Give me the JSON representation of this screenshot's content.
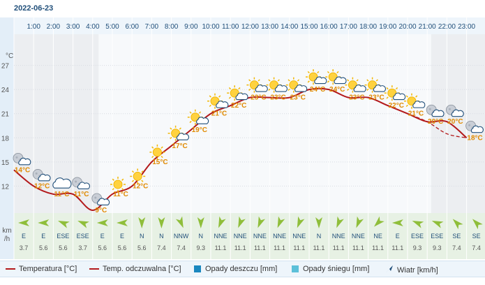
{
  "date": "2022-06-23",
  "axis": {
    "temp_unit": "°C",
    "wind_unit_line1": "km",
    "wind_unit_line2": "/h"
  },
  "colors": {
    "temperature": "#b3191b",
    "rain": "#1a87bf",
    "snow": "#5cc0d9",
    "wind_arrow": "#8fbe3a",
    "night_bg": "#eceef1",
    "day_bg": "#f7f9fb",
    "axis_bg": "#e3eef8",
    "temp_label": "#e08a00"
  },
  "chart_data": {
    "type": "line",
    "hours": [
      "1:00",
      "2:00",
      "3:00",
      "4:00",
      "5:00",
      "6:00",
      "7:00",
      "8:00",
      "9:00",
      "10:00",
      "11:00",
      "12:00",
      "13:00",
      "14:00",
      "15:00",
      "16:00",
      "17:00",
      "18:00",
      "19:00",
      "20:00",
      "21:00",
      "22:00",
      "23:00"
    ],
    "y_ticks": [
      27,
      24,
      21,
      18,
      15,
      12
    ],
    "ylim": [
      9,
      30
    ],
    "temperature": [
      14,
      12,
      11,
      11,
      9,
      11,
      12,
      15,
      17,
      19,
      21,
      22,
      23,
      23,
      23,
      24,
      24,
      23,
      23,
      22,
      21,
      20,
      20,
      18
    ],
    "temperature_labels": [
      "14°C",
      "12°C",
      "11°C",
      "11°C",
      "9°C",
      "11°C",
      "12°C",
      "15°C",
      "17°C",
      "19°C",
      "21°C",
      "22°C",
      "23°C",
      "23°C",
      "23°C",
      "24°C",
      "24°C",
      "23°C",
      "23°C",
      "22°C",
      "21°C",
      "20°C",
      "20°C",
      "18°C"
    ],
    "feels_like": [
      14,
      12,
      11,
      11,
      9,
      11,
      12,
      15,
      17,
      19,
      21,
      22,
      23,
      23,
      23,
      24,
      24,
      23,
      23,
      22,
      21,
      20,
      18.5,
      18
    ],
    "weather_icons": [
      "night-partly-cloudy-icon",
      "night-partly-cloudy-icon",
      "cloud-icon",
      "night-partly-cloudy-icon",
      "night-partly-cloudy-icon",
      "sun-icon",
      "sun-icon",
      "sun-icon",
      "sun-partly-cloudy-icon",
      "sun-partly-cloudy-icon",
      "sun-partly-cloudy-icon",
      "sun-partly-cloudy-icon",
      "sun-partly-cloudy-icon",
      "sun-partly-cloudy-icon",
      "sun-partly-cloudy-icon",
      "sun-partly-cloudy-icon",
      "sun-partly-cloudy-icon",
      "sun-partly-cloudy-icon",
      "sun-partly-cloudy-icon",
      "sun-partly-cloudy-icon",
      "sun-partly-cloudy-icon",
      "night-partly-cloudy-icon",
      "night-partly-cloudy-icon",
      "night-partly-cloudy-icon"
    ],
    "wind_dir": [
      "E",
      "E",
      "ESE",
      "ESE",
      "E",
      "E",
      "N",
      "N",
      "NNW",
      "N",
      "NNE",
      "NNE",
      "NNE",
      "NNE",
      "NNE",
      "N",
      "NNE",
      "NNE",
      "NE",
      "E",
      "ESE",
      "ESE",
      "SE",
      "SE"
    ],
    "wind_deg": [
      90,
      90,
      112,
      112,
      90,
      90,
      0,
      0,
      337,
      0,
      22,
      22,
      22,
      22,
      22,
      0,
      22,
      22,
      45,
      90,
      112,
      112,
      135,
      135
    ],
    "wind_speed": [
      "3.7",
      "5.6",
      "5.6",
      "3.7",
      "5.6",
      "5.6",
      "5.6",
      "7.4",
      "7.4",
      "9.3",
      "11.1",
      "11.1",
      "11.1",
      "11.1",
      "11.1",
      "11.1",
      "11.1",
      "11.1",
      "11.1",
      "11.1",
      "9.3",
      "9.3",
      "7.4",
      "7.4"
    ]
  },
  "legend": {
    "temperature": "Temperatura [°C]",
    "feels_like": "Temp. odczuwalna [°C]",
    "rain": "Opady deszczu [mm]",
    "snow": "Opady śniegu [mm]",
    "wind": "Wiatr [km/h]"
  }
}
